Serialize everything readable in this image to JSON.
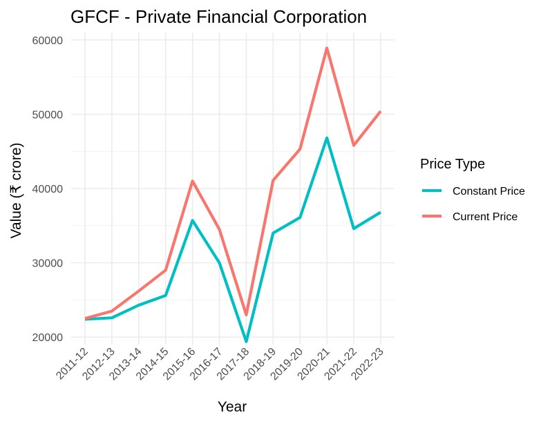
{
  "chart_data": {
    "type": "line",
    "title": "GFCF -  Private Financial Corporation",
    "xlabel": "Year",
    "ylabel": "Value (₹ crore)",
    "categories": [
      "2011-12",
      "2012-13",
      "2013-14",
      "2014-15",
      "2015-16",
      "2016-17",
      "2017-18",
      "2018-19",
      "2019-20",
      "2020-21",
      "2021-22",
      "2022-23"
    ],
    "ylim": [
      19000,
      61000
    ],
    "yticks": [
      20000,
      30000,
      40000,
      50000,
      60000
    ],
    "ytick_labels": [
      "20000",
      "30000",
      "40000",
      "50000",
      "60000"
    ],
    "grid": true,
    "legend": {
      "title": "Price Type",
      "position": "right"
    },
    "series": [
      {
        "name": "Constant Price",
        "color": "#00BFC4",
        "values": [
          22400,
          22600,
          24300,
          25600,
          35700,
          30000,
          19400,
          34000,
          36100,
          46800,
          34600,
          36800
        ]
      },
      {
        "name": "Current Price",
        "color": "#F8766D",
        "values": [
          22500,
          23500,
          26200,
          29000,
          41000,
          34500,
          23000,
          41100,
          45300,
          58900,
          45800,
          50400
        ]
      }
    ]
  }
}
